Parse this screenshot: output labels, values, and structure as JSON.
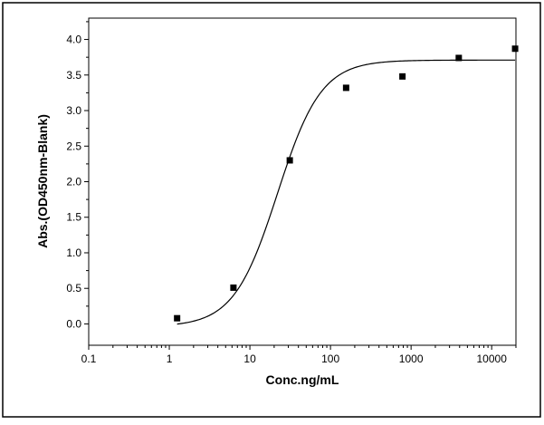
{
  "chart_data": {
    "type": "scatter",
    "xlabel": "Conc.ng/mL",
    "ylabel": "Abs.(OD450nm-Blank)",
    "x_scale": "log",
    "xlim": [
      0.1,
      20000
    ],
    "ylim": [
      -0.3,
      4.3
    ],
    "x_ticks": [
      0.1,
      1,
      10,
      100,
      1000,
      10000
    ],
    "x_tick_labels": [
      "0.1",
      "1",
      "10",
      "100",
      "1000",
      "10000"
    ],
    "y_ticks": [
      0.0,
      0.5,
      1.0,
      1.5,
      2.0,
      2.5,
      3.0,
      3.5,
      4.0
    ],
    "y_tick_labels": [
      "0.0",
      "0.5",
      "1.0",
      "1.5",
      "2.0",
      "2.5",
      "3.0",
      "3.5",
      "4.0"
    ],
    "grid": false,
    "series": [
      {
        "marker": "square",
        "x": [
          1.25,
          6.25,
          31.25,
          156.25,
          781.25,
          3906.25,
          19531.25
        ],
        "y": [
          0.08,
          0.51,
          2.3,
          3.32,
          3.48,
          3.74,
          3.87
        ]
      }
    ],
    "fit_curve": {
      "model": "4PL",
      "x_range": [
        1.25,
        19531.25
      ],
      "bottom": -0.04,
      "top": 3.71,
      "ec50": 22,
      "hill": 1.6
    }
  }
}
